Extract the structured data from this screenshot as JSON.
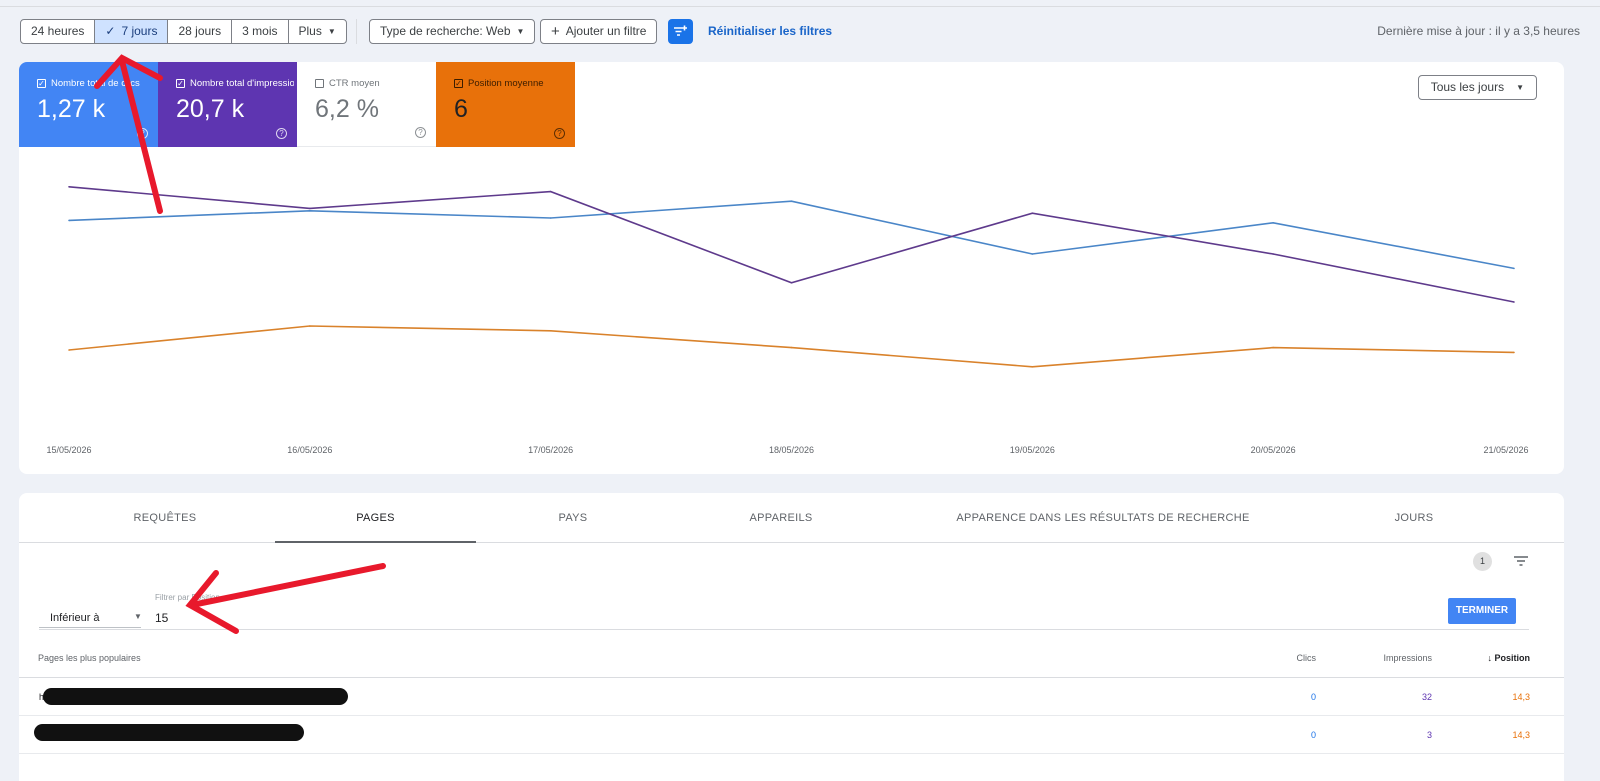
{
  "toolbar": {
    "ranges": [
      "24 heures",
      "7 jours",
      "28 jours",
      "3 mois",
      "Plus"
    ],
    "selected_range": "7 jours",
    "search_type": "Type de recherche: Web",
    "add_filter": "Ajouter un filtre",
    "reset": "Réinitialiser les filtres",
    "last_update": "Dernière mise à jour : il y a 3,5 heures"
  },
  "metrics": {
    "clicks": {
      "label": "Nombre total de clics",
      "value": "1,27 k",
      "checked": true,
      "color": "#4285f4"
    },
    "impressions": {
      "label": "Nombre total d'impressions",
      "value": "20,7 k",
      "checked": true,
      "color": "#5e35b1"
    },
    "ctr": {
      "label": "CTR moyen",
      "value": "6,2 %",
      "checked": false
    },
    "position": {
      "label": "Position moyenne",
      "value": "6",
      "checked": true,
      "color": "#e8710a"
    }
  },
  "day_selector": "Tous les jours",
  "chart_data": {
    "type": "line",
    "x": [
      "15/05/2026",
      "16/05/2026",
      "17/05/2026",
      "18/05/2026",
      "19/05/2026",
      "20/05/2026",
      "21/05/2026"
    ],
    "series": [
      {
        "name": "Nombre total de clics",
        "color": "#4a86c8",
        "values": [
          0.84,
          0.88,
          0.85,
          0.92,
          0.7,
          0.83,
          0.64
        ]
      },
      {
        "name": "Nombre total d'impressions",
        "color": "#5e3a8c",
        "values": [
          0.98,
          0.89,
          0.96,
          0.58,
          0.87,
          0.7,
          0.5
        ]
      },
      {
        "name": "Position moyenne",
        "color": "#d9822b",
        "values": [
          0.3,
          0.4,
          0.38,
          0.31,
          0.23,
          0.31,
          0.29
        ]
      }
    ],
    "ylim": [
      0,
      1
    ],
    "grid": false,
    "legend": "none"
  },
  "tabs": [
    "REQUÊTES",
    "PAGES",
    "PAYS",
    "APPAREILS",
    "APPARENCE DANS LES RÉSULTATS DE RECHERCHE",
    "JOURS"
  ],
  "active_tab": "PAGES",
  "filter_count": "1",
  "position_filter": {
    "caption": "Filtrer par Position",
    "operator": "Inférieur à",
    "value": "15",
    "done": "TERMINER"
  },
  "table": {
    "columns": [
      "Pages les plus populaires",
      "Clics",
      "Impressions",
      "Position"
    ],
    "rows": [
      {
        "url_visible": "h                                                                  e/",
        "clicks": "0",
        "impressions": "32",
        "position": "14,3"
      },
      {
        "url_visible": "",
        "clicks": "0",
        "impressions": "3",
        "position": "14,3"
      }
    ]
  }
}
